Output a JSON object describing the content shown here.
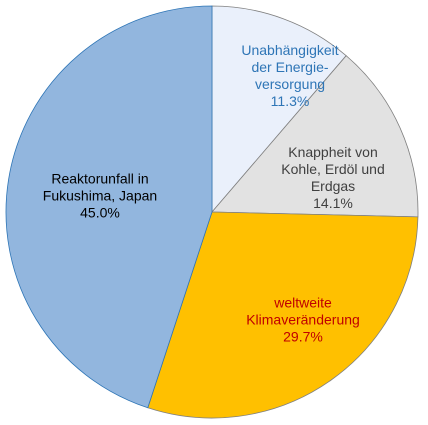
{
  "chart_data": {
    "type": "pie",
    "categories": [
      "Unabhängigkeit\nder Energie-\nversorgung",
      "Knappheit von\nKohle, Erdöl und\nErdgas",
      "weltweite\nKlimaveränderung",
      "Reaktorunfall in\nFukushima, Japan"
    ],
    "values": [
      11.3,
      14.1,
      29.7,
      45.0
    ],
    "value_labels": [
      "11.3%",
      "14.1%",
      "29.7%",
      "45.0%"
    ],
    "colors": [
      "#eaf0fb",
      "#e2e2e2",
      "#ffc000",
      "#92b6de"
    ],
    "label_colors": [
      "#2e75b6",
      "#404040",
      "#c00000",
      "#000000"
    ]
  }
}
